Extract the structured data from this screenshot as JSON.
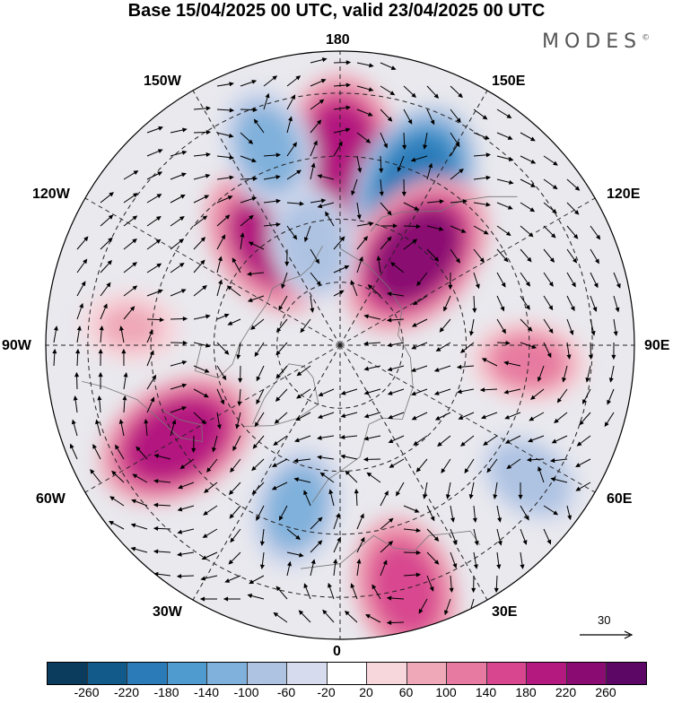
{
  "title": "Base 15/04/2025 00 UTC, valid 23/04/2025 00 UTC",
  "brand": "MODES",
  "brand_mark": "©",
  "longitude_labels": {
    "top": "180",
    "top_left": "150W",
    "top_right": "150E",
    "upper_left": "120W",
    "upper_right": "120E",
    "left": "90W",
    "right": "90E",
    "lower_left": "60W",
    "lower_right": "60E",
    "bottom_left": "30W",
    "bottom_right": "30E",
    "bottom": "0"
  },
  "vector_scale": "30",
  "colorbar": {
    "colors": [
      "#0b3c5d",
      "#125a8a",
      "#2b7bb9",
      "#4f9bd0",
      "#7fb1dc",
      "#aec3e2",
      "#d6dcee",
      "#ffffff",
      "#f7d6dc",
      "#efa8b8",
      "#e77aa0",
      "#d8468f",
      "#b3197f",
      "#8a0c72",
      "#5c0666"
    ],
    "ticks": [
      "-260",
      "-220",
      "-180",
      "-140",
      "-100",
      "-60",
      "-20",
      "20",
      "60",
      "100",
      "140",
      "180",
      "220",
      "260"
    ]
  },
  "anomalies": [
    {
      "lon": 180,
      "lat": 45,
      "value": 200
    },
    {
      "lon": 155,
      "lat": 48,
      "value": -200
    },
    {
      "lon": 140,
      "lat": 62,
      "value": 220
    },
    {
      "lon": -145,
      "lat": 60,
      "value": 180
    },
    {
      "lon": -165,
      "lat": 65,
      "value": -100
    },
    {
      "lon": -160,
      "lat": 40,
      "value": -120
    },
    {
      "lon": -60,
      "lat": 45,
      "value": 200
    },
    {
      "lon": -15,
      "lat": 50,
      "value": -120
    },
    {
      "lon": 15,
      "lat": 30,
      "value": 160
    },
    {
      "lon": 85,
      "lat": 45,
      "value": 100
    },
    {
      "lon": -95,
      "lat": 40,
      "value": 60
    },
    {
      "lon": 55,
      "lat": 35,
      "value": -80
    }
  ]
}
